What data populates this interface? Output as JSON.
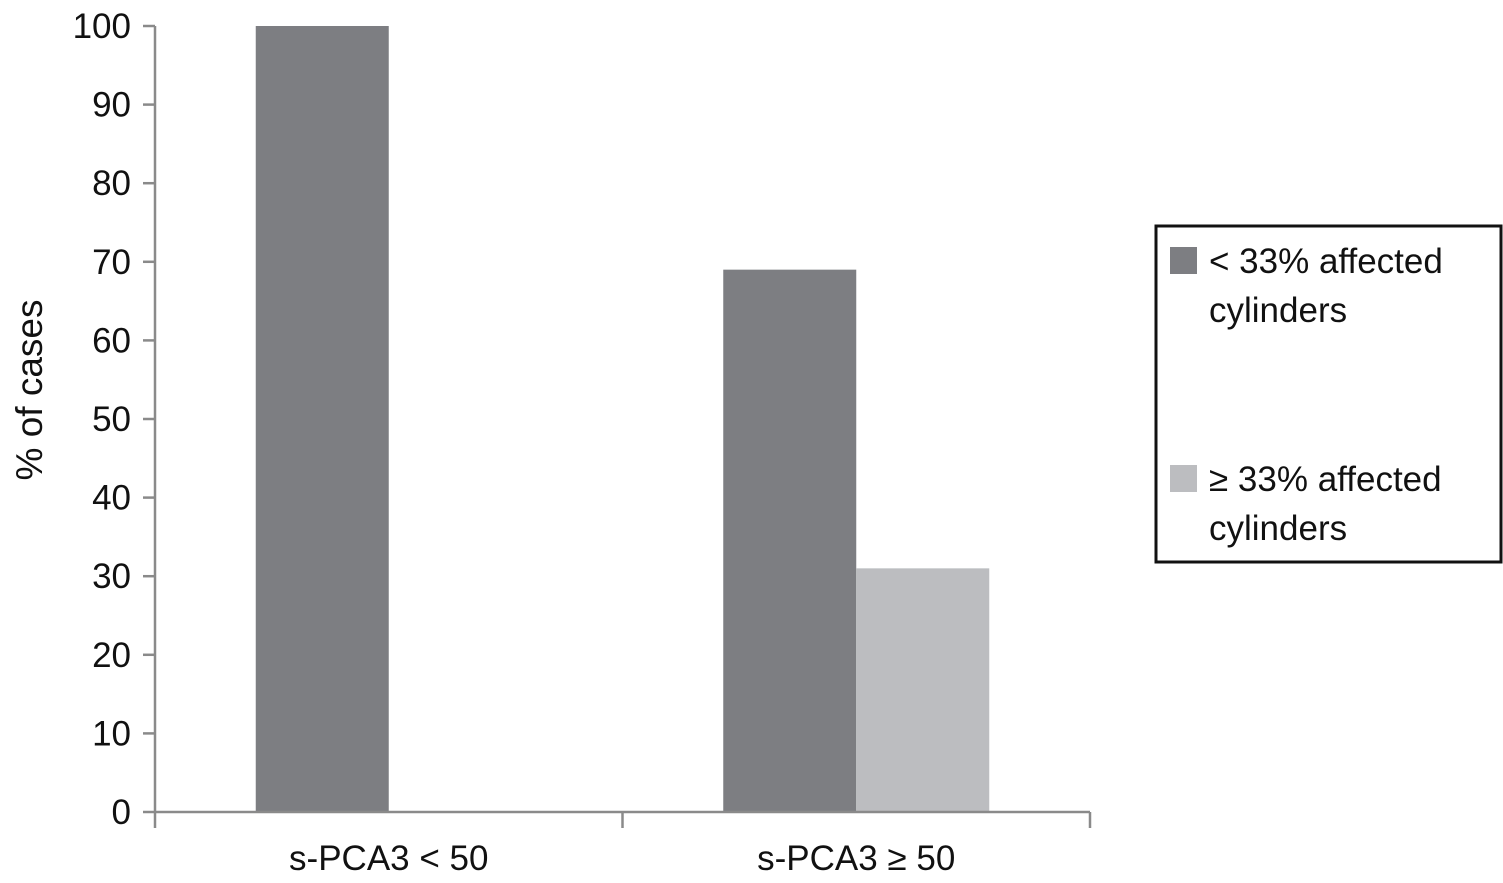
{
  "chart_data": {
    "type": "bar",
    "categories": [
      "s-PCA3 < 50",
      "s-PCA3 ≥ 50"
    ],
    "series": [
      {
        "name": "< 33% affected cylinders",
        "values": [
          100,
          69
        ],
        "color": "#7d7e82"
      },
      {
        "name": "≥ 33% affected cylinders",
        "values": [
          0,
          31
        ],
        "color": "#bcbdc0"
      }
    ],
    "legend_lines": [
      [
        "< 33% affected",
        "cylinders"
      ],
      [
        "≥ 33% affected",
        "cylinders"
      ]
    ],
    "title": "",
    "xlabel": "",
    "ylabel": "% of cases",
    "ylim": [
      0,
      100
    ],
    "yticks": [
      0,
      10,
      20,
      30,
      40,
      50,
      60,
      70,
      80,
      90,
      100
    ],
    "grid": false,
    "legend_position": "right"
  }
}
